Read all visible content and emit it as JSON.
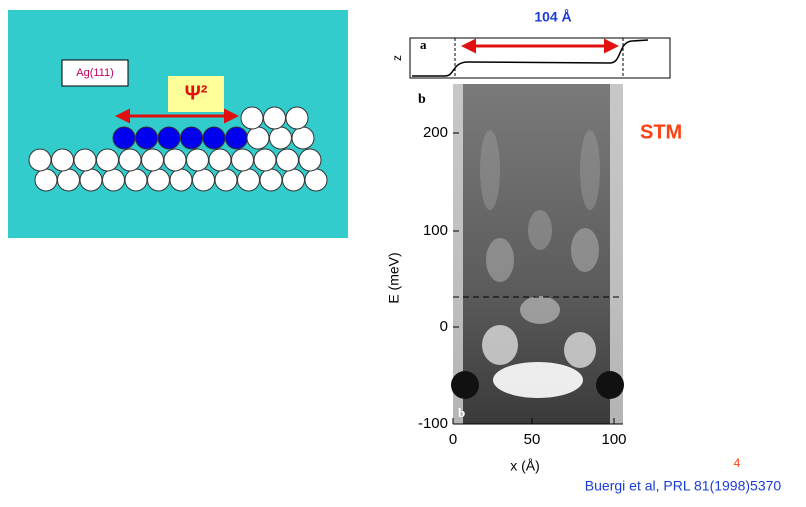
{
  "diagram": {
    "substrate_label": "Ag(111)",
    "psi_label": "Ψ²"
  },
  "figure": {
    "width_label": "104 Å",
    "panel_a": "a",
    "z_label": "z",
    "panel_b": "b",
    "panel_b_inner": "b",
    "y_label": "E (meV)",
    "x_label": "x (Å)",
    "y_ticks": [
      "200",
      "100",
      "0",
      "-100"
    ],
    "x_ticks": [
      "0",
      "50",
      "100"
    ],
    "method": "STM"
  },
  "slide_number": "4",
  "citation": "Buergi et al, PRL 81(1998)5370"
}
